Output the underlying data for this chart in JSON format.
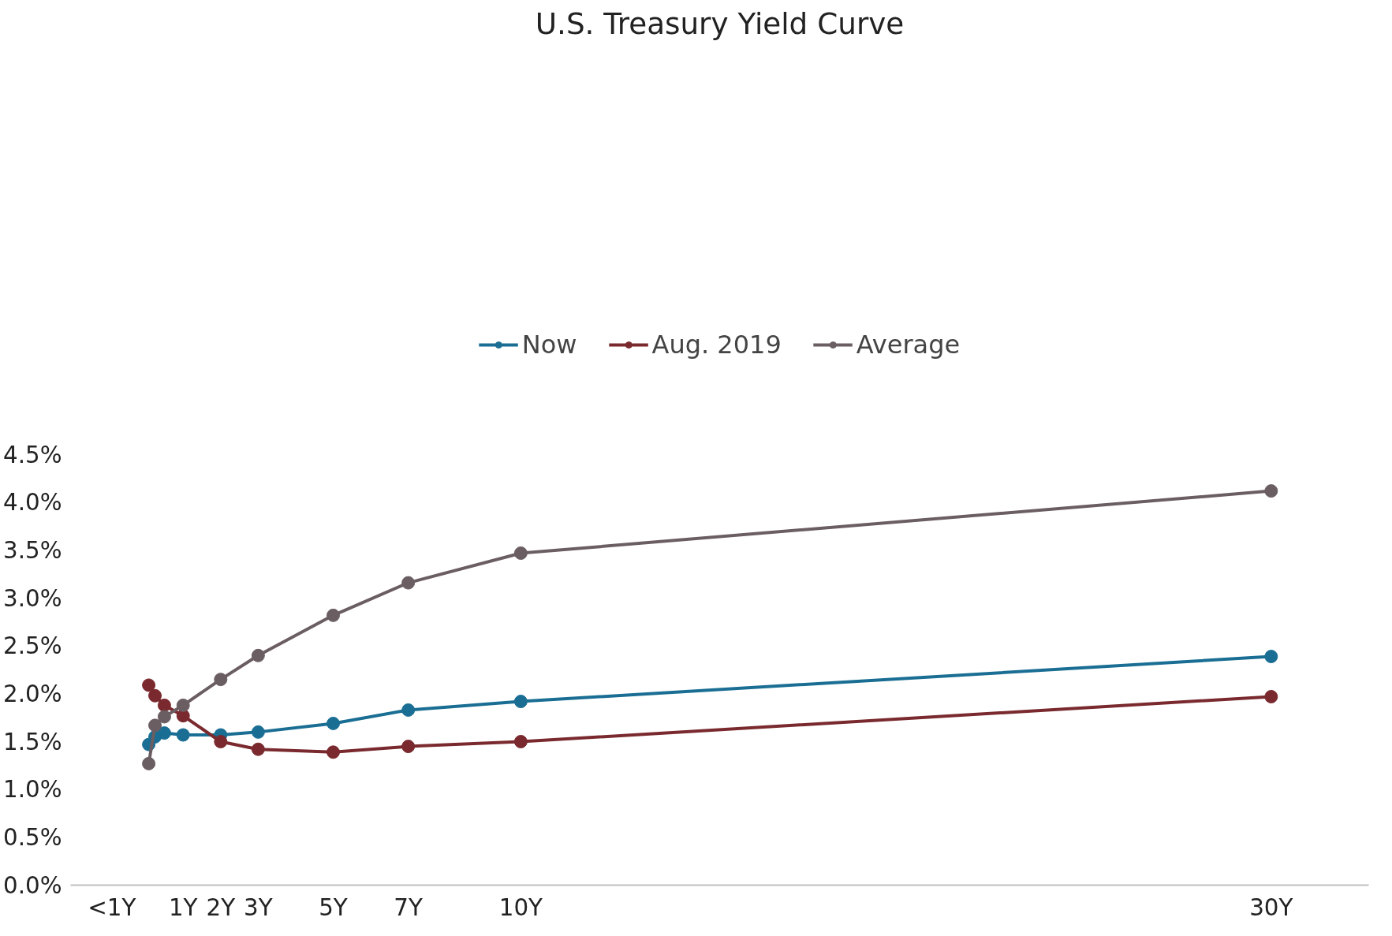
{
  "chart_data": {
    "type": "line",
    "title": "U.S. Treasury Yield Curve",
    "x": [
      0.083,
      0.25,
      0.5,
      1,
      2,
      3,
      5,
      7,
      10,
      30
    ],
    "series": [
      {
        "name": "Now",
        "color": "#1a6e94",
        "values": [
          1.47,
          1.55,
          1.59,
          1.57,
          1.57,
          1.6,
          1.69,
          1.83,
          1.92,
          2.39
        ]
      },
      {
        "name": "Aug. 2019",
        "color": "#7a2a2e",
        "values": [
          2.09,
          1.98,
          1.88,
          1.77,
          1.5,
          1.42,
          1.39,
          1.45,
          1.5,
          1.97
        ]
      },
      {
        "name": "Average",
        "color": "#6b5e62",
        "values": [
          1.27,
          1.67,
          1.76,
          1.88,
          2.15,
          2.4,
          2.82,
          3.16,
          3.47,
          4.12
        ]
      }
    ],
    "xlim": [
      -2,
      32.6
    ],
    "xticks": [
      {
        "value": -0.9,
        "label": "<1Y"
      },
      {
        "value": 1,
        "label": "1Y"
      },
      {
        "value": 2,
        "label": "2Y"
      },
      {
        "value": 3,
        "label": "3Y"
      },
      {
        "value": 5,
        "label": "5Y"
      },
      {
        "value": 7,
        "label": "7Y"
      },
      {
        "value": 10,
        "label": "10Y"
      },
      {
        "value": 30,
        "label": "30Y"
      }
    ],
    "ylim": [
      0,
      4.5
    ],
    "yticks": [
      {
        "value": 0,
        "label": "0.0%"
      },
      {
        "value": 0.5,
        "label": "0.5%"
      },
      {
        "value": 1,
        "label": "1.0%"
      },
      {
        "value": 1.5,
        "label": "1.5%"
      },
      {
        "value": 2,
        "label": "2.0%"
      },
      {
        "value": 2.5,
        "label": "2.5%"
      },
      {
        "value": 3,
        "label": "3.0%"
      },
      {
        "value": 3.5,
        "label": "3.5%"
      },
      {
        "value": 4,
        "label": "4.0%"
      },
      {
        "value": 4.5,
        "label": "4.5%"
      }
    ],
    "grid": false,
    "legend": "top",
    "marker": "circle",
    "line_style": "solid"
  }
}
